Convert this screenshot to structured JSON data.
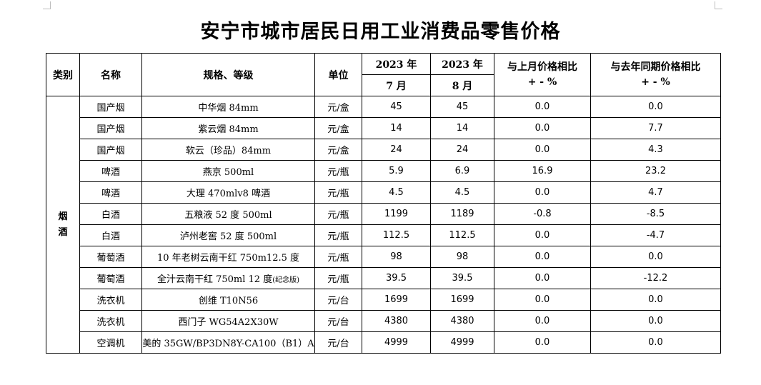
{
  "title": "安宁市城市居民日用工业消费品零售价格",
  "headers": {
    "category": "类别",
    "name": "名称",
    "spec": "规格、等级",
    "unit": "单位",
    "col_prev_year": "2023 年",
    "col_prev_month": "7 月",
    "col_cur_year": "2023 年",
    "col_cur_month": "8 月",
    "mom": "与上月价格相比",
    "mom_unit": "+ - %",
    "yoy": "与去年同期价格相比",
    "yoy_unit": "+ - %"
  },
  "category": "烟酒",
  "rows": [
    {
      "name": "国产烟",
      "spec": "中华烟 84mm",
      "unit": "元/盒",
      "jul": "45",
      "aug": "45",
      "mom": "0.0",
      "yoy": "0.0"
    },
    {
      "name": "国产烟",
      "spec": "紫云烟 84mm",
      "unit": "元/盒",
      "jul": "14",
      "aug": "14",
      "mom": "0.0",
      "yoy": "7.7"
    },
    {
      "name": "国产烟",
      "spec": "软云（珍品）84mm",
      "unit": "元/盒",
      "jul": "24",
      "aug": "24",
      "mom": "0.0",
      "yoy": "4.3"
    },
    {
      "name": "啤酒",
      "spec": "燕京 500ml",
      "unit": "元/瓶",
      "jul": "5.9",
      "aug": "6.9",
      "mom": "16.9",
      "yoy": "23.2"
    },
    {
      "name": "啤酒",
      "spec": "大理 470mlv8 啤酒",
      "unit": "元/瓶",
      "jul": "4.5",
      "aug": "4.5",
      "mom": "0.0",
      "yoy": "4.7"
    },
    {
      "name": "白酒",
      "spec": "五粮液 52 度 500ml",
      "unit": "元/瓶",
      "jul": "1199",
      "aug": "1189",
      "mom": "-0.8",
      "yoy": "-8.5"
    },
    {
      "name": "白酒",
      "spec": "泸州老窖 52 度 500ml",
      "unit": "元/瓶",
      "jul": "112.5",
      "aug": "112.5",
      "mom": "0.0",
      "yoy": "-4.7"
    },
    {
      "name": "葡萄酒",
      "spec": "10 年老树云南干红  750m12.5 度",
      "unit": "元/瓶",
      "jul": "98",
      "aug": "98",
      "mom": "0.0",
      "yoy": "0.0"
    },
    {
      "name": "葡萄酒",
      "spec": "全汁云南干红 750ml 12 度",
      "spec_note": "(纪念版)",
      "unit": "元/瓶",
      "jul": "39.5",
      "aug": "39.5",
      "mom": "0.0",
      "yoy": "-12.2"
    },
    {
      "name": "洗衣机",
      "spec": "创维 T10N56",
      "unit": "元/台",
      "jul": "1699",
      "aug": "1699",
      "mom": "0.0",
      "yoy": "0.0"
    },
    {
      "name": "洗衣机",
      "spec": "西门子 WG54A2X30W",
      "unit": "元/台",
      "jul": "4380",
      "aug": "4380",
      "mom": "0.0",
      "yoy": "0.0"
    },
    {
      "name": "空调机",
      "spec": "美的 35GW/BP3DN8Y-CA100（B1）A",
      "unit": "元/台",
      "jul": "4999",
      "aug": "4999",
      "mom": "0.0",
      "yoy": "0.0"
    }
  ]
}
